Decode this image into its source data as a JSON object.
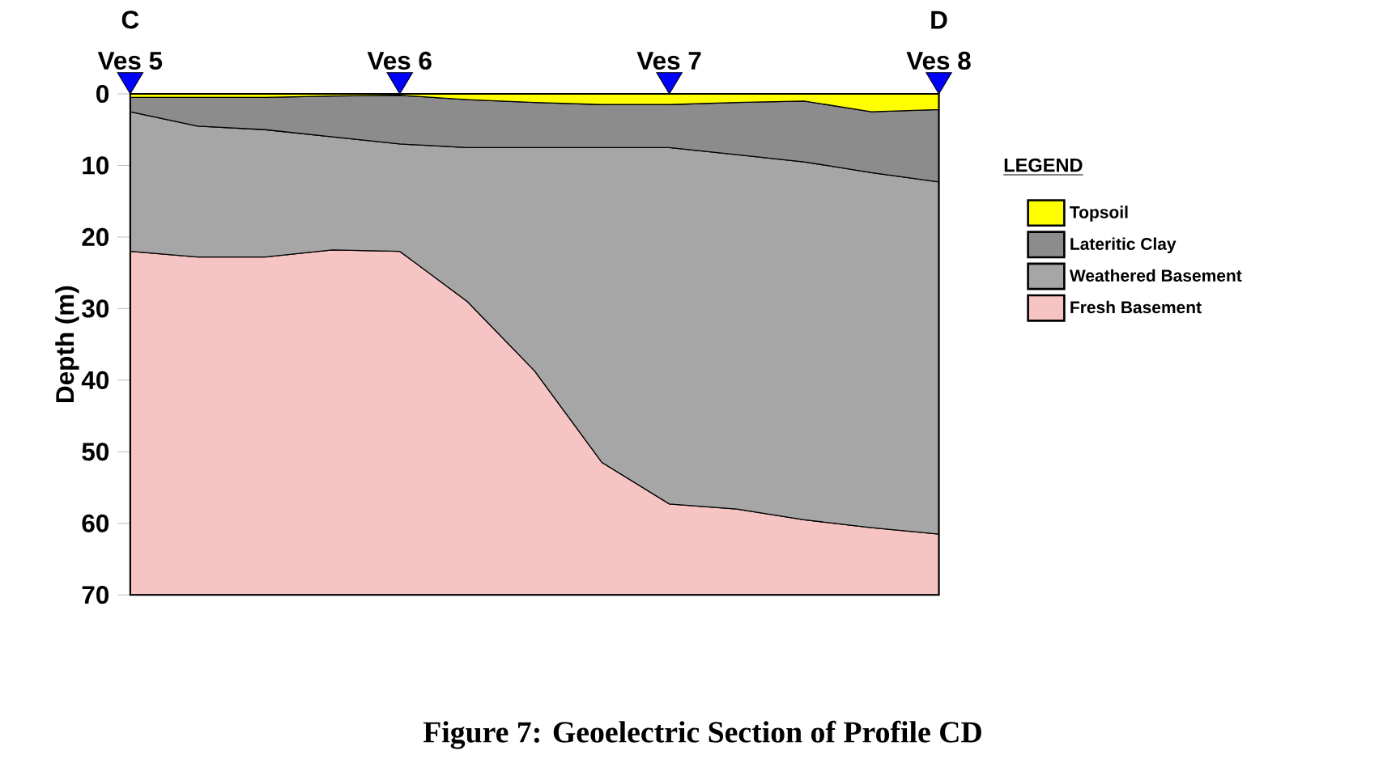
{
  "chart_data": {
    "type": "area",
    "stacked": true,
    "ylabel": "Depth (m)",
    "legend_title": "LEGEND",
    "legend": "right",
    "categories": [
      "Ves 5",
      null,
      null,
      null,
      "Ves 6",
      null,
      null,
      null,
      "Ves 7",
      null,
      null,
      null,
      "Ves 8"
    ],
    "ylim": [
      70,
      0
    ],
    "yticks": [
      0,
      10,
      20,
      30,
      40,
      50,
      60,
      70
    ],
    "series": [
      {
        "name": "Topsoil",
        "color": "#ffff00",
        "values": [
          0.5,
          0.5,
          0.5,
          0.3,
          0.2,
          0.8,
          1.2,
          1.5,
          1.5,
          1.2,
          1.0,
          2.5,
          2.2
        ]
      },
      {
        "name": "Lateritic Clay",
        "color": "#8c8c8c",
        "values": [
          2.0,
          4.0,
          4.5,
          5.7,
          6.8,
          6.7,
          6.3,
          6.0,
          6.0,
          7.3,
          8.5,
          8.5,
          10.1
        ]
      },
      {
        "name": "Weathered Basement",
        "color": "#a6a6a6",
        "values": [
          19.5,
          18.3,
          17.8,
          15.8,
          15.0,
          21.5,
          31.2,
          44.0,
          49.8,
          49.5,
          50.0,
          49.6,
          49.2
        ]
      },
      {
        "name": "Fresh Basement",
        "color": "#f7c4c4",
        "values": [
          48,
          47.2,
          47.2,
          48.2,
          48,
          41,
          31.3,
          18.5,
          12.7,
          12,
          10.5,
          9.4,
          8.5
        ]
      }
    ],
    "annotations": [
      "C",
      "D",
      "Figure 7: Geoelectric Section of Profile CD"
    ]
  }
}
